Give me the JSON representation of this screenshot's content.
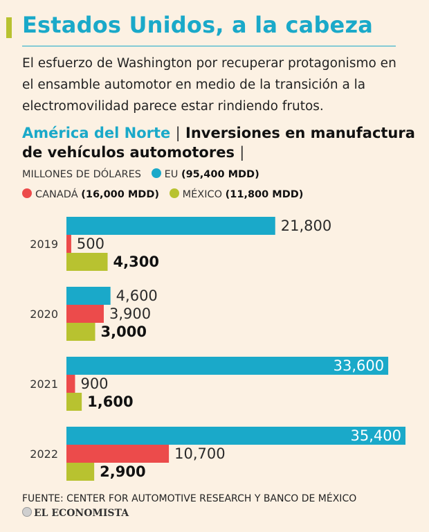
{
  "header": {
    "title": "Estados Unidos, a la cabeza",
    "subtitle": "El esfuerzo de Washington por recuperar protagonismo en el ensamble automotor en medio de la transición a la electromovilidad parece estar rindiendo frutos."
  },
  "chart_heading": {
    "region": "América del Norte",
    "separator": "|",
    "title": "Inversiones en manufactura de vehículos automotores",
    "trailing_separator": "|"
  },
  "legend": {
    "units": "MILLONES DE DÓLARES",
    "items": [
      {
        "name": "EU",
        "total": "(95,400 MDD)",
        "color": "#1aa9c9"
      },
      {
        "name": "CANADÁ",
        "total": "(16,000 MDD)",
        "color": "#ec4b4b"
      },
      {
        "name": "MÉXICO",
        "total": "(11,800 MDD)",
        "color": "#b8c230"
      }
    ]
  },
  "chart_data": {
    "type": "bar",
    "orientation": "horizontal",
    "title": "América del Norte | Inversiones en manufactura de vehículos automotores",
    "units": "Millones de dólares",
    "categories": [
      "2019",
      "2020",
      "2021",
      "2022"
    ],
    "series": [
      {
        "name": "EU",
        "color": "#1aa9c9",
        "values": [
          21800,
          4600,
          33600,
          35400
        ],
        "labels": [
          "21,800",
          "4,600",
          "33,600",
          "35,400"
        ]
      },
      {
        "name": "CANADÁ",
        "color": "#ec4b4b",
        "values": [
          500,
          3900,
          900,
          10700
        ],
        "labels": [
          "500",
          "3,900",
          "900",
          "10,700"
        ]
      },
      {
        "name": "MÉXICO",
        "color": "#b8c230",
        "values": [
          4300,
          3000,
          1600,
          2900
        ],
        "labels": [
          "4,300",
          "3,000",
          "1,600",
          "2,900"
        ]
      }
    ],
    "xlim": [
      0,
      35400
    ],
    "grid": false
  },
  "footer": {
    "source": "FUENTE: CENTER FOR AUTOMOTIVE RESEARCH Y BANCO DE MÉXICO",
    "brand": "EL ECONOMISTA"
  }
}
